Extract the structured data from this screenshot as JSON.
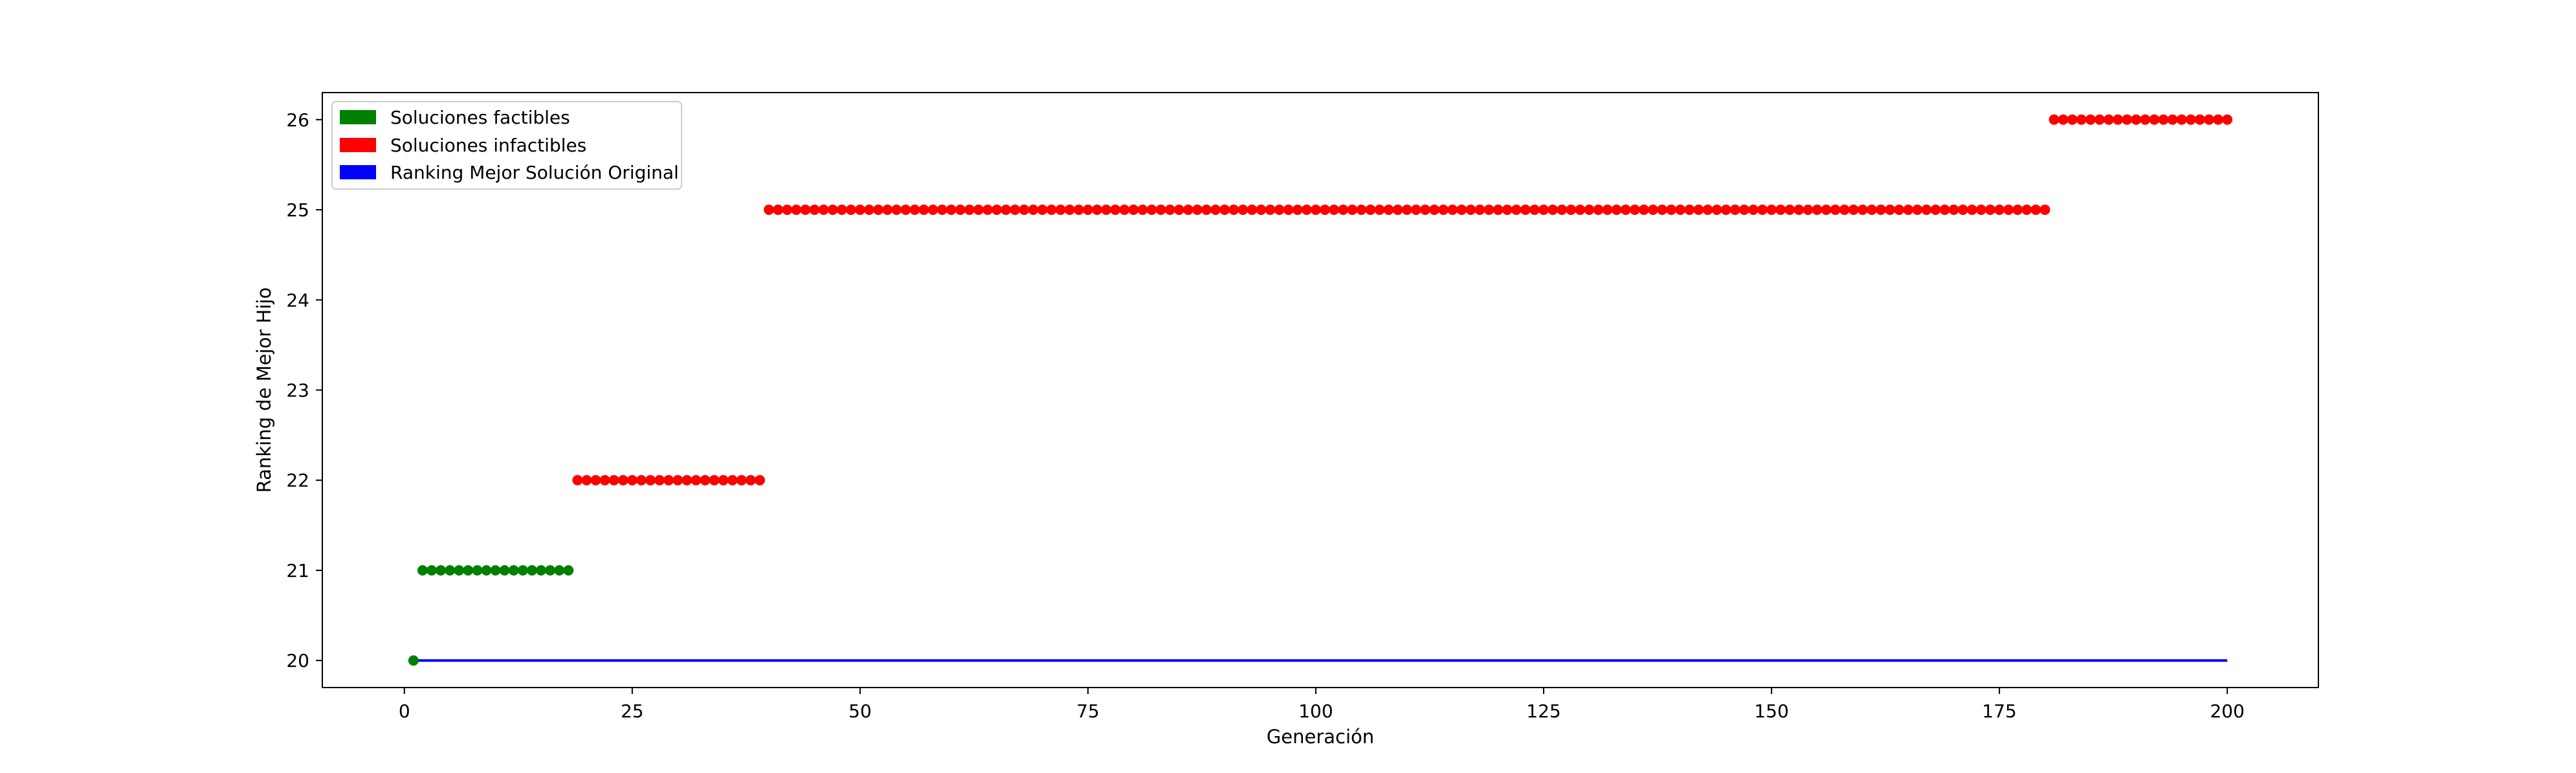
{
  "chart_data": {
    "type": "scatter",
    "xlabel": "Generación",
    "ylabel": "Ranking de Mejor Hijo",
    "xlim": [
      -9,
      210
    ],
    "ylim": [
      19.7,
      26.3
    ],
    "xticks": [
      0,
      25,
      50,
      75,
      100,
      125,
      150,
      175,
      200
    ],
    "yticks": [
      20,
      21,
      22,
      23,
      24,
      25,
      26
    ],
    "grid": false,
    "legend_position": "top-left",
    "series": [
      {
        "name": "Soluciones factibles",
        "color": "#008000",
        "marker": "circle",
        "points": [
          [
            1,
            20
          ],
          [
            2,
            21
          ],
          [
            3,
            21
          ],
          [
            4,
            21
          ],
          [
            5,
            21
          ],
          [
            6,
            21
          ],
          [
            7,
            21
          ],
          [
            8,
            21
          ],
          [
            9,
            21
          ],
          [
            10,
            21
          ],
          [
            11,
            21
          ],
          [
            12,
            21
          ],
          [
            13,
            21
          ],
          [
            14,
            21
          ],
          [
            15,
            21
          ],
          [
            16,
            21
          ],
          [
            17,
            21
          ],
          [
            18,
            21
          ]
        ]
      },
      {
        "name": "Soluciones infactibles",
        "color": "#ff0000",
        "marker": "circle",
        "segments": [
          {
            "x_start": 19,
            "x_end": 39,
            "y": 22
          },
          {
            "x_start": 40,
            "x_end": 180,
            "y": 25
          },
          {
            "x_start": 181,
            "x_end": 200,
            "y": 26
          }
        ]
      },
      {
        "name": "Ranking Mejor Solución Original",
        "color": "#0000ff",
        "marker": "line",
        "points": [
          [
            1,
            20
          ],
          [
            200,
            20
          ]
        ]
      }
    ]
  }
}
